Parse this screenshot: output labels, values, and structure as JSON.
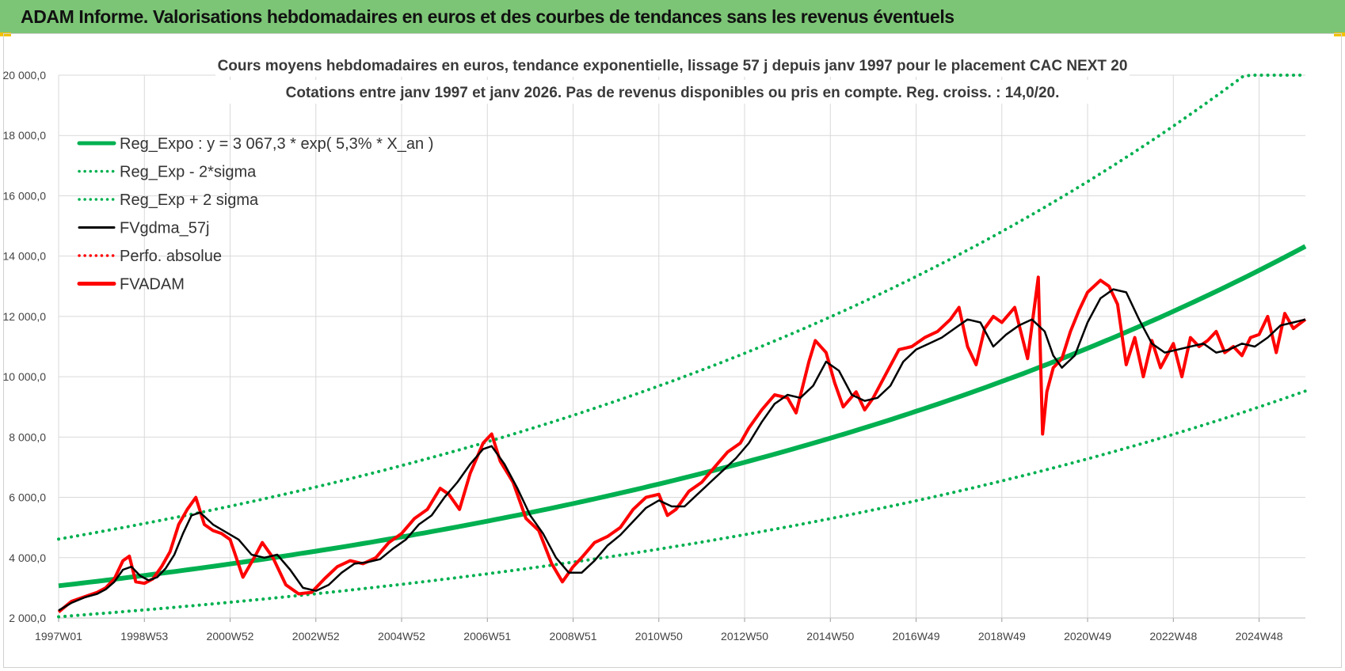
{
  "header": {
    "title": "ADAM Informe. Valorisations hebdomadaires en euros et des courbes de tendances sans les revenus éventuels"
  },
  "chart_data": {
    "type": "line",
    "title_lines": [
      "Cours moyens hebdomadaires en euros, tendance exponentielle, lissage 57 j depuis janv 1997 pour le placement CAC NEXT 20",
      "Cotations entre janv 1997 et janv 2026. Pas de revenus disponibles ou pris en compte. Reg. croiss. : 14,0/20."
    ],
    "xlabel": "",
    "ylabel": "",
    "x_range": [
      1997.0,
      2026.08
    ],
    "ylim": [
      2000,
      20000
    ],
    "y_ticks": [
      2000,
      4000,
      6000,
      8000,
      10000,
      12000,
      14000,
      16000,
      18000,
      20000
    ],
    "y_tick_labels": [
      "2 000,0",
      "4 000,0",
      "6 000,0",
      "8 000,0",
      "10 000,0",
      "12 000,0",
      "14 000,0",
      "16 000,0",
      "18 000,0",
      "20 000,0"
    ],
    "x_tick_positions": [
      1997.0,
      1999.0,
      2001.0,
      2003.0,
      2005.0,
      2007.0,
      2009.0,
      2011.0,
      2013.0,
      2015.0,
      2017.0,
      2019.0,
      2021.0,
      2023.0,
      2025.0
    ],
    "x_tick_labels": [
      "1997W01",
      "1998W53",
      "2000W52",
      "2002W52",
      "2004W52",
      "2006W51",
      "2008W51",
      "2010W50",
      "2012W50",
      "2014W50",
      "2016W49",
      "2018W49",
      "2020W49",
      "2022W48",
      "2024W48"
    ],
    "grid": true,
    "legend_position": "top-left",
    "legend": [
      {
        "label": "Reg_Expo : y = 3 067,3 * exp( 5,3% *  X_an )",
        "color": "#00b050",
        "style": "solid-thick"
      },
      {
        "label": "Reg_Exp - 2*sigma",
        "color": "#00b050",
        "style": "dotted"
      },
      {
        "label": "Reg_Exp + 2 sigma",
        "color": "#00b050",
        "style": "dotted"
      },
      {
        "label": "FVgdma_57j",
        "color": "#000000",
        "style": "solid"
      },
      {
        "label": "Perfo. absolue",
        "color": "#ff0000",
        "style": "dotted"
      },
      {
        "label": "FVADAM",
        "color": "#ff0000",
        "style": "solid-thick"
      }
    ],
    "trend": {
      "a": 3067.3,
      "rate": 0.053,
      "lower_factor": 0.665,
      "upper_factor": 1.505,
      "x_start": 1997.0,
      "x_end": 2026.08
    },
    "series": [
      {
        "name": "FVADAM",
        "color": "#ff0000",
        "x": [
          1997.0,
          1997.3,
          1997.6,
          1997.9,
          1998.1,
          1998.3,
          1998.5,
          1998.65,
          1998.8,
          1999.0,
          1999.2,
          1999.4,
          1999.6,
          1999.8,
          2000.0,
          2000.2,
          2000.4,
          2000.6,
          2000.8,
          2001.0,
          2001.3,
          2001.6,
          2001.75,
          2002.0,
          2002.3,
          2002.6,
          2002.9,
          2003.2,
          2003.5,
          2003.8,
          2004.1,
          2004.4,
          2004.7,
          2005.0,
          2005.3,
          2005.6,
          2005.9,
          2006.1,
          2006.35,
          2006.6,
          2006.9,
          2007.1,
          2007.3,
          2007.6,
          2007.9,
          2008.2,
          2008.5,
          2008.75,
          2009.0,
          2009.2,
          2009.5,
          2009.8,
          2010.1,
          2010.4,
          2010.7,
          2011.0,
          2011.2,
          2011.4,
          2011.7,
          2012.0,
          2012.3,
          2012.6,
          2012.9,
          2013.1,
          2013.4,
          2013.7,
          2014.0,
          2014.2,
          2014.5,
          2014.65,
          2014.9,
          2015.1,
          2015.3,
          2015.6,
          2015.8,
          2016.0,
          2016.3,
          2016.6,
          2016.9,
          2017.2,
          2017.5,
          2017.8,
          2018.0,
          2018.2,
          2018.4,
          2018.6,
          2018.8,
          2019.0,
          2019.3,
          2019.6,
          2019.85,
          2019.95,
          2020.05,
          2020.2,
          2020.4,
          2020.6,
          2020.8,
          2021.0,
          2021.3,
          2021.5,
          2021.7,
          2021.9,
          2022.1,
          2022.3,
          2022.5,
          2022.7,
          2023.0,
          2023.2,
          2023.4,
          2023.6,
          2023.8,
          2024.0,
          2024.2,
          2024.4,
          2024.6,
          2024.8,
          2025.0,
          2025.2,
          2025.4,
          2025.6,
          2025.8,
          2026.08
        ],
        "values": [
          2200,
          2550,
          2700,
          2850,
          3000,
          3300,
          3900,
          4050,
          3200,
          3150,
          3300,
          3700,
          4200,
          5100,
          5600,
          6000,
          5100,
          4900,
          4800,
          4600,
          3350,
          4100,
          4500,
          4000,
          3100,
          2800,
          2850,
          3300,
          3700,
          3900,
          3800,
          4000,
          4500,
          4800,
          5300,
          5600,
          6300,
          6100,
          5600,
          6800,
          7800,
          8100,
          7200,
          6500,
          5300,
          4900,
          3800,
          3200,
          3700,
          4000,
          4500,
          4700,
          5000,
          5600,
          6000,
          6100,
          5400,
          5600,
          6200,
          6500,
          7000,
          7500,
          7800,
          8300,
          8900,
          9400,
          9300,
          8800,
          10500,
          11200,
          10800,
          9800,
          9000,
          9500,
          8900,
          9300,
          10100,
          10900,
          11000,
          11300,
          11500,
          11900,
          12300,
          11000,
          10400,
          11600,
          12000,
          11800,
          12300,
          10600,
          13300,
          8100,
          9500,
          10300,
          10600,
          11500,
          12200,
          12800,
          13200,
          13000,
          12400,
          10400,
          11300,
          10000,
          11200,
          10300,
          11100,
          10000,
          11300,
          11000,
          11200,
          11500,
          10800,
          11000,
          10700,
          11300,
          11400,
          12000,
          10800,
          12100,
          11600,
          11900
        ]
      },
      {
        "name": "FVgdma_57j",
        "color": "#000000",
        "x": [
          1997.0,
          1997.3,
          1997.6,
          1997.9,
          1998.1,
          1998.3,
          1998.5,
          1998.7,
          1998.9,
          1999.1,
          1999.3,
          1999.5,
          1999.7,
          1999.9,
          2000.1,
          2000.3,
          2000.6,
          2000.9,
          2001.2,
          2001.5,
          2001.8,
          2002.1,
          2002.4,
          2002.7,
          2003.0,
          2003.3,
          2003.6,
          2003.9,
          2004.2,
          2004.5,
          2004.8,
          2005.1,
          2005.4,
          2005.7,
          2006.0,
          2006.3,
          2006.6,
          2006.9,
          2007.1,
          2007.4,
          2007.7,
          2008.0,
          2008.3,
          2008.6,
          2008.9,
          2009.2,
          2009.5,
          2009.8,
          2010.1,
          2010.4,
          2010.7,
          2011.0,
          2011.3,
          2011.6,
          2011.9,
          2012.2,
          2012.5,
          2012.8,
          2013.1,
          2013.4,
          2013.7,
          2014.0,
          2014.3,
          2014.6,
          2014.9,
          2015.2,
          2015.5,
          2015.8,
          2016.1,
          2016.4,
          2016.7,
          2017.0,
          2017.3,
          2017.6,
          2017.9,
          2018.2,
          2018.5,
          2018.8,
          2019.1,
          2019.4,
          2019.7,
          2020.0,
          2020.2,
          2020.4,
          2020.7,
          2021.0,
          2021.3,
          2021.6,
          2021.9,
          2022.2,
          2022.5,
          2022.8,
          2023.1,
          2023.4,
          2023.7,
          2024.0,
          2024.3,
          2024.6,
          2024.9,
          2025.2,
          2025.5,
          2025.8,
          2026.08
        ],
        "values": [
          2250,
          2500,
          2680,
          2800,
          2950,
          3200,
          3600,
          3700,
          3400,
          3250,
          3350,
          3650,
          4100,
          4800,
          5400,
          5500,
          5100,
          4850,
          4600,
          4100,
          4000,
          4100,
          3600,
          3000,
          2900,
          3100,
          3500,
          3800,
          3850,
          3950,
          4300,
          4600,
          5100,
          5400,
          6000,
          6500,
          7100,
          7600,
          7700,
          7100,
          6300,
          5400,
          4800,
          4000,
          3500,
          3500,
          3900,
          4400,
          4750,
          5200,
          5650,
          5900,
          5700,
          5700,
          6100,
          6500,
          6900,
          7300,
          7800,
          8500,
          9100,
          9400,
          9300,
          9700,
          10500,
          10200,
          9400,
          9200,
          9300,
          9700,
          10500,
          10900,
          11100,
          11300,
          11600,
          11900,
          11800,
          11000,
          11400,
          11700,
          11900,
          11500,
          10700,
          10300,
          10700,
          11800,
          12600,
          12900,
          12800,
          11900,
          11100,
          10800,
          10900,
          11000,
          11100,
          10800,
          10900,
          11100,
          11000,
          11300,
          11700,
          11800,
          11900
        ]
      }
    ]
  }
}
